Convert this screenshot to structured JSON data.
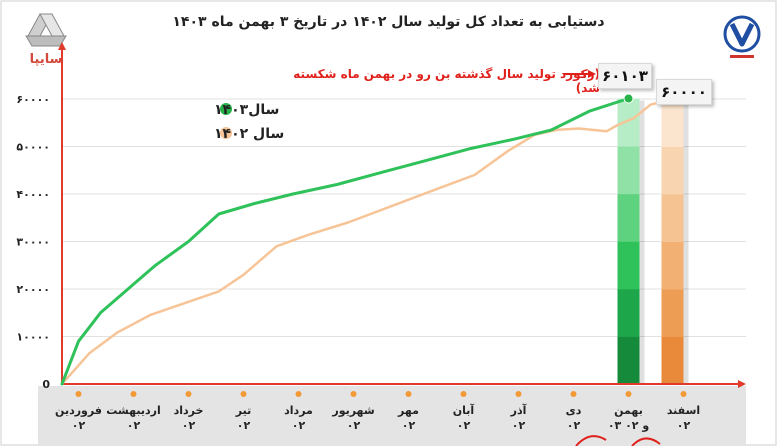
{
  "title": "دستیابی به تعداد کل تولید سال ۱۴۰۲ در تاریخ ۳ بهمن ماه ۱۴۰۳",
  "logo_text": "سایپا",
  "callout": "(رکورد تولید سال گذشته بن رو در بهمن ماه شکسته شد)",
  "badges": {
    "y1403_value": "۶۰۱۰۳",
    "y1402_value": "۶۰۰۰۰"
  },
  "legend": [
    {
      "label": "سال۱۴۰۳",
      "color": "#27b24a"
    },
    {
      "label": "سال ۱۴۰۲",
      "color": "#f7c497"
    }
  ],
  "colors": {
    "green": "#2fc15a",
    "peach": "#f7c497",
    "orange_bar": "#ee9d55",
    "callout": "#e0201b"
  },
  "chart_data": {
    "type": "line",
    "title": "دستیابی به تعداد کل تولید سال ۱۴۰۲ در تاریخ ۳ بهمن ماه ۱۴۰۳",
    "categories": [
      "فروردین",
      "اردیبهشت",
      "خرداد",
      "تیر",
      "مرداد",
      "شهریور",
      "مهر",
      "آبان",
      "آذر",
      "دی",
      "بهمن",
      "اسفند"
    ],
    "category_sublabels": [
      "۰۲",
      "۰۲",
      "۰۲",
      "۰۲",
      "۰۲",
      "۰۲",
      "۰۲",
      "۰۲",
      "۰۲",
      "۰۲",
      "۰۳ و ۰۲",
      "۰۲"
    ],
    "y_ticks": [
      0,
      10000,
      20000,
      30000,
      40000,
      50000,
      60000
    ],
    "y_tick_labels": [
      "0",
      "۱۰۰۰۰",
      "۲۰۰۰۰",
      "۳۰۰۰۰",
      "۴۰۰۰۰",
      "۵۰۰۰۰",
      "۶۰۰۰۰"
    ],
    "ylim": [
      0,
      64000
    ],
    "x_range": [
      0,
      11.6
    ],
    "series": [
      {
        "name": "سال۱۴۰۳",
        "color": "#2fc15a",
        "x": [
          0,
          0.3,
          0.7,
          1.2,
          1.7,
          2.3,
          2.85,
          3.5,
          4.2,
          5.0,
          5.8,
          6.6,
          7.4,
          8.2,
          8.9,
          9.6,
          10.3
        ],
        "y": [
          0,
          9000,
          15000,
          20000,
          25000,
          30000,
          35800,
          38000,
          40000,
          42000,
          44500,
          47000,
          49500,
          51500,
          53500,
          57500,
          60103
        ]
      },
      {
        "name": "سال ۱۴۰۲",
        "color": "#f7c497",
        "x": [
          0,
          0.5,
          1.0,
          1.6,
          2.3,
          2.85,
          3.3,
          3.9,
          4.5,
          5.2,
          6.0,
          6.8,
          7.5,
          8.1,
          8.6,
          9.0,
          9.4,
          9.9,
          10.1,
          10.4,
          10.7,
          11.1
        ],
        "y": [
          0,
          6500,
          10800,
          14500,
          17300,
          19500,
          23000,
          29000,
          31500,
          34000,
          37500,
          41000,
          44000,
          49000,
          52500,
          53500,
          53800,
          53200,
          54500,
          56000,
          58800,
          60000
        ]
      }
    ]
  }
}
